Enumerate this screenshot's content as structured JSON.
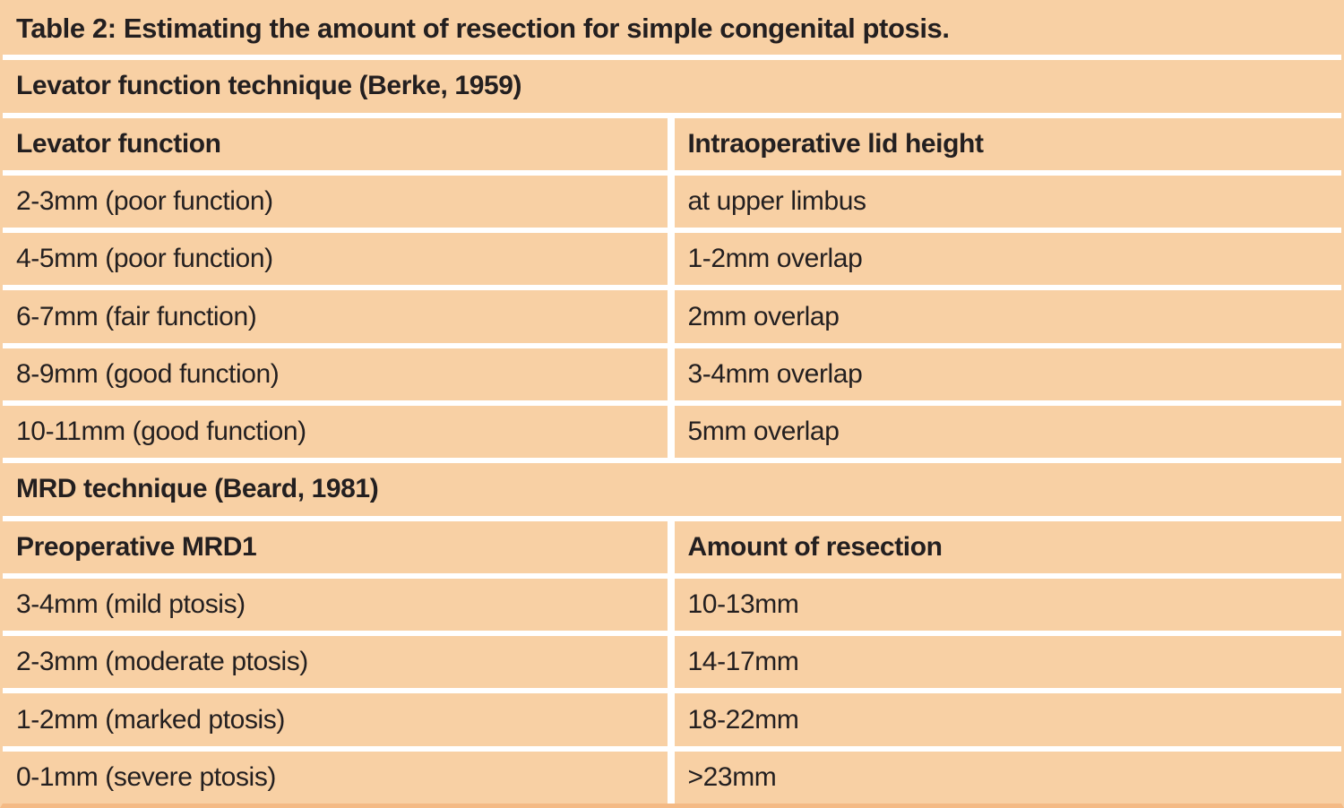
{
  "colors": {
    "table_bg": "#f8d0a4",
    "divider": "#ffffff",
    "text": "#231f20",
    "bottom_border": "#f4ba85"
  },
  "table": {
    "title": "Table 2: Estimating the amount of resection for simple congenital ptosis.",
    "sections": [
      {
        "header": "Levator function technique (Berke, 1959)",
        "columns": [
          "Levator function",
          "Intraoperative lid height"
        ],
        "rows": [
          [
            "2-3mm (poor function)",
            "at upper limbus"
          ],
          [
            "4-5mm (poor function)",
            "1-2mm overlap"
          ],
          [
            "6-7mm (fair function)",
            "2mm overlap"
          ],
          [
            "8-9mm (good function)",
            "3-4mm overlap"
          ],
          [
            "10-11mm (good function)",
            "5mm overlap"
          ]
        ]
      },
      {
        "header": "MRD technique (Beard, 1981)",
        "columns": [
          "Preoperative MRD1",
          "Amount of resection"
        ],
        "rows": [
          [
            "3-4mm (mild ptosis)",
            "10-13mm"
          ],
          [
            "2-3mm (moderate ptosis)",
            "14-17mm"
          ],
          [
            "1-2mm (marked ptosis)",
            "18-22mm"
          ],
          [
            "0-1mm (severe ptosis)",
            ">23mm"
          ]
        ]
      }
    ]
  }
}
